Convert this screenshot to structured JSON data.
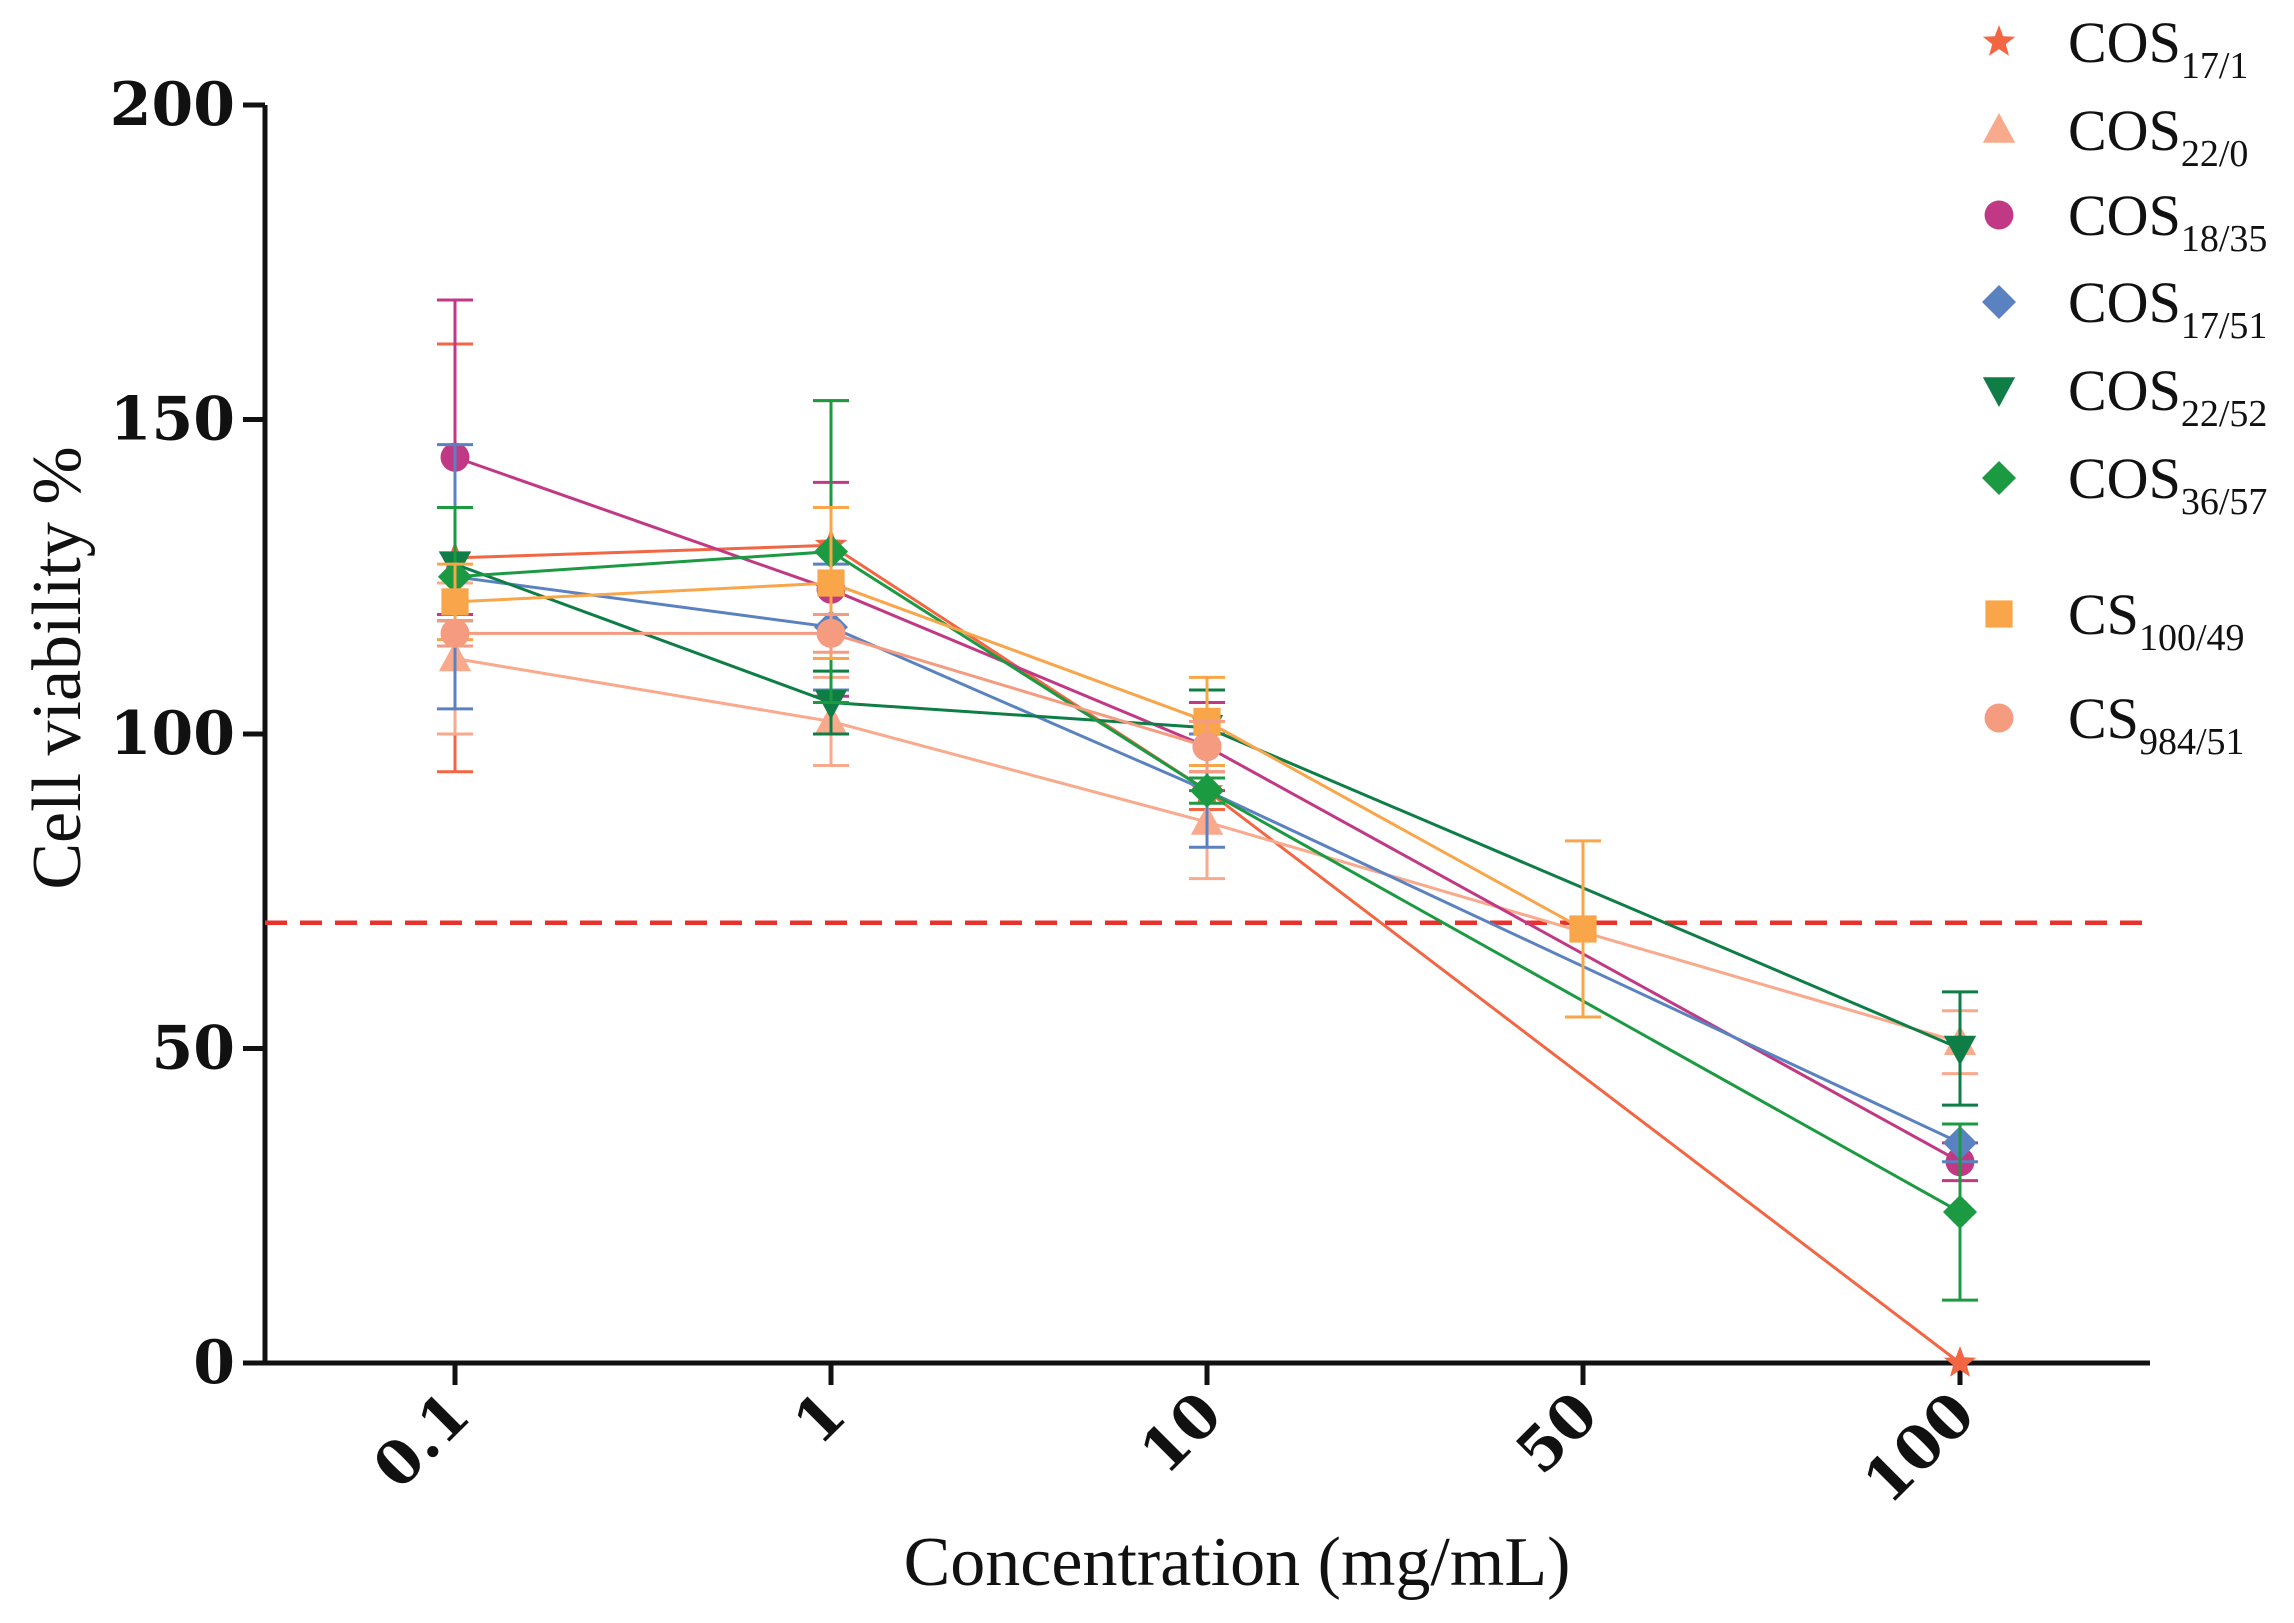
{
  "chart_data": {
    "type": "line",
    "title": "",
    "xlabel": "Concentration (mg/mL)",
    "ylabel": "Cell viability %",
    "categories": [
      "0.1",
      "1",
      "10",
      "50",
      "100"
    ],
    "ylim": [
      0,
      200
    ],
    "yticks": [
      0,
      50,
      100,
      150,
      200
    ],
    "threshold": {
      "value": 70,
      "color": "#e8332c",
      "style": "dashed"
    },
    "legend_position": "top-right",
    "series": [
      {
        "name": "COS",
        "subscript": "17/1",
        "marker": "star",
        "color": "#f26644",
        "values": [
          128,
          130,
          91,
          null,
          0
        ],
        "errors": [
          34,
          23,
          3,
          null,
          0
        ]
      },
      {
        "name": "COS",
        "subscript": "22/0",
        "marker": "triangle-up",
        "color": "#f9a98c",
        "values": [
          112,
          102,
          86,
          null,
          51
        ],
        "errors": [
          12,
          7,
          9,
          null,
          5
        ]
      },
      {
        "name": "COS",
        "subscript": "18/35",
        "marker": "circle",
        "color": "#c13884",
        "values": [
          144,
          123,
          98,
          null,
          32
        ],
        "errors": [
          25,
          17,
          7,
          null,
          3
        ]
      },
      {
        "name": "COS",
        "subscript": "17/51",
        "marker": "diamond",
        "color": "#5b82c0",
        "values": [
          125,
          117,
          91,
          null,
          35
        ],
        "errors": [
          21,
          10,
          9,
          null,
          3
        ]
      },
      {
        "name": "COS",
        "subscript": "22/52",
        "marker": "triangle-down",
        "color": "#0e7d46",
        "values": [
          127,
          105,
          101,
          null,
          50
        ],
        "errors": [
          9,
          5,
          6,
          null,
          9
        ]
      },
      {
        "name": "COS",
        "subscript": "36/57",
        "marker": "diamond",
        "color": "#1b9a42",
        "values": [
          125,
          129,
          91,
          null,
          24
        ],
        "errors": [
          11,
          24,
          2,
          null,
          14
        ]
      },
      {
        "name": "CS",
        "subscript": "100/49",
        "marker": "square",
        "color": "#f9a54a",
        "values": [
          121,
          124,
          102,
          69,
          null
        ],
        "errors": [
          6,
          12,
          7,
          14,
          null
        ]
      },
      {
        "name": "CS",
        "subscript": "984/51",
        "marker": "circle",
        "color": "#f49b80",
        "values": [
          116,
          116,
          98,
          null,
          null
        ],
        "errors": [
          2,
          3,
          4,
          null,
          null
        ]
      }
    ]
  }
}
